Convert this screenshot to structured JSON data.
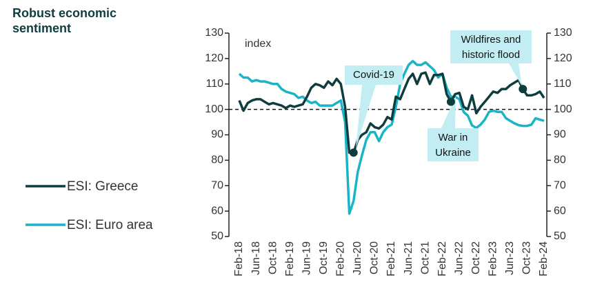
{
  "chart_data": {
    "type": "line",
    "title": "Robust economic sentiment",
    "y_axis_label": "index",
    "categories": [
      "Feb-18",
      null,
      null,
      null,
      "Jun-18",
      null,
      null,
      null,
      "Oct-18",
      null,
      null,
      null,
      "Feb-19",
      null,
      null,
      null,
      "Jun-19",
      null,
      null,
      null,
      "Oct-19",
      null,
      null,
      null,
      "Feb-20",
      null,
      null,
      null,
      "Jun-20",
      null,
      null,
      null,
      "Oct-20",
      null,
      null,
      null,
      "Feb-21",
      null,
      null,
      null,
      "Jun-21",
      null,
      null,
      null,
      "Oct-21",
      null,
      null,
      null,
      "Feb-22",
      null,
      null,
      null,
      "Jun-22",
      null,
      null,
      null,
      "Oct-22",
      null,
      null,
      null,
      "Feb-23",
      null,
      null,
      null,
      "Jun-23",
      null,
      null,
      null,
      "Oct-23",
      null,
      null,
      null,
      "Feb-24"
    ],
    "series": [
      {
        "name": "ESI: Greece",
        "color": "#0f3d3e",
        "values": [
          103.5,
          99.5,
          102.5,
          103.5,
          104,
          104,
          103,
          102,
          102.5,
          102,
          101.5,
          100.5,
          101.5,
          101,
          101.5,
          102,
          105,
          108.5,
          110,
          109.5,
          108.5,
          111,
          109.5,
          112,
          110,
          101,
          83,
          83,
          88,
          90,
          91,
          94.5,
          93,
          92.5,
          94,
          97,
          96,
          105,
          104,
          108,
          112,
          114,
          110,
          114,
          114.5,
          110,
          113.5,
          113.5,
          114,
          106,
          103,
          106,
          106.5,
          101,
          100,
          105.5,
          98.5,
          101,
          103,
          105,
          107,
          106.5,
          108,
          108,
          109.5,
          110.5,
          111.5,
          108,
          105.5,
          105.5,
          106,
          107,
          104.5
        ]
      },
      {
        "name": "ESI: Euro area",
        "color": "#19b4c6",
        "values": [
          114,
          112.5,
          112.5,
          111,
          111.5,
          111,
          111,
          110.5,
          110,
          110,
          108,
          107,
          106.5,
          106,
          104.5,
          105,
          103.5,
          102.5,
          103,
          101.5,
          101.5,
          101.5,
          101.5,
          102.5,
          103.5,
          95,
          59,
          64,
          75.5,
          82,
          88,
          91,
          91,
          87.5,
          91,
          93,
          94,
          101,
          110,
          114,
          117.5,
          119,
          117.5,
          117.5,
          118.5,
          117,
          115.5,
          112.5,
          114,
          108.5,
          105,
          105,
          104,
          99,
          97.5,
          93.7,
          92.7,
          94,
          96,
          99,
          99.5,
          99,
          99,
          96.5,
          95.5,
          94.5,
          93.8,
          93.5,
          93.5,
          94,
          96.5,
          96,
          95.5
        ]
      }
    ],
    "ylim": [
      50,
      130
    ],
    "yticks": [
      50,
      60,
      70,
      80,
      90,
      100,
      110,
      120,
      130
    ],
    "y2lim": [
      50,
      130
    ],
    "y2ticks": [
      50,
      60,
      70,
      80,
      90,
      100,
      110,
      120,
      130
    ],
    "reference_line": 100,
    "annotations": [
      {
        "lines": [
          "Covid-19"
        ]
      },
      {
        "lines": [
          "War in",
          "Ukraine"
        ]
      },
      {
        "lines": [
          "Wildfires and",
          "historic flood"
        ]
      }
    ]
  }
}
